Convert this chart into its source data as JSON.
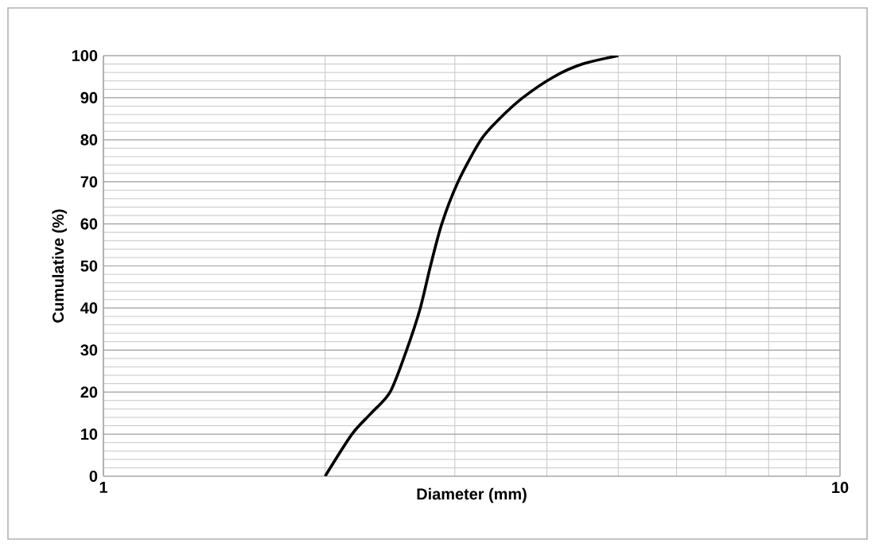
{
  "chart_data": {
    "type": "line",
    "xlabel": "Diameter (mm)",
    "ylabel": "Cumulative (%)",
    "log": "x",
    "grid": true,
    "marker": "none",
    "line_style": "solid",
    "xlim": [
      1,
      10
    ],
    "xticks": [
      1,
      10
    ],
    "ylim": [
      0,
      100
    ],
    "yticks": [
      0,
      10,
      20,
      30,
      40,
      50,
      60,
      70,
      80,
      90,
      100
    ],
    "series": [
      {
        "color": "#000000",
        "x": [
          2.0,
          2.175,
          2.31,
          2.45,
          2.58,
          2.693,
          2.78,
          2.88,
          3.03,
          3.255,
          3.45,
          3.71,
          4.09,
          4.47,
          5.0
        ],
        "values": [
          0,
          10,
          15,
          20,
          30,
          40,
          50,
          60,
          70,
          80,
          85,
          90,
          95,
          98,
          100
        ]
      }
    ]
  }
}
